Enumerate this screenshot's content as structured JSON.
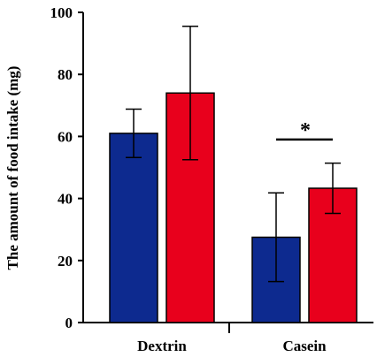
{
  "chart_data": {
    "type": "bar",
    "title": "",
    "xlabel": "",
    "ylabel": "The amount of food intake (mg)",
    "ylim": [
      0,
      100
    ],
    "yticks": [
      0,
      20,
      40,
      60,
      80,
      100
    ],
    "grid": false,
    "categories": [
      "Dextrin",
      "Casein"
    ],
    "series": [
      {
        "color": "#0d2a8f",
        "values": [
          61,
          27.5
        ],
        "errors": [
          7.8,
          14.3
        ]
      },
      {
        "color": "#e8001c",
        "values": [
          74,
          43.3
        ],
        "errors": [
          21.5,
          8.1
        ]
      }
    ],
    "annotations": [
      {
        "text": "*",
        "category": "Casein",
        "bracket_y": 59
      }
    ]
  }
}
